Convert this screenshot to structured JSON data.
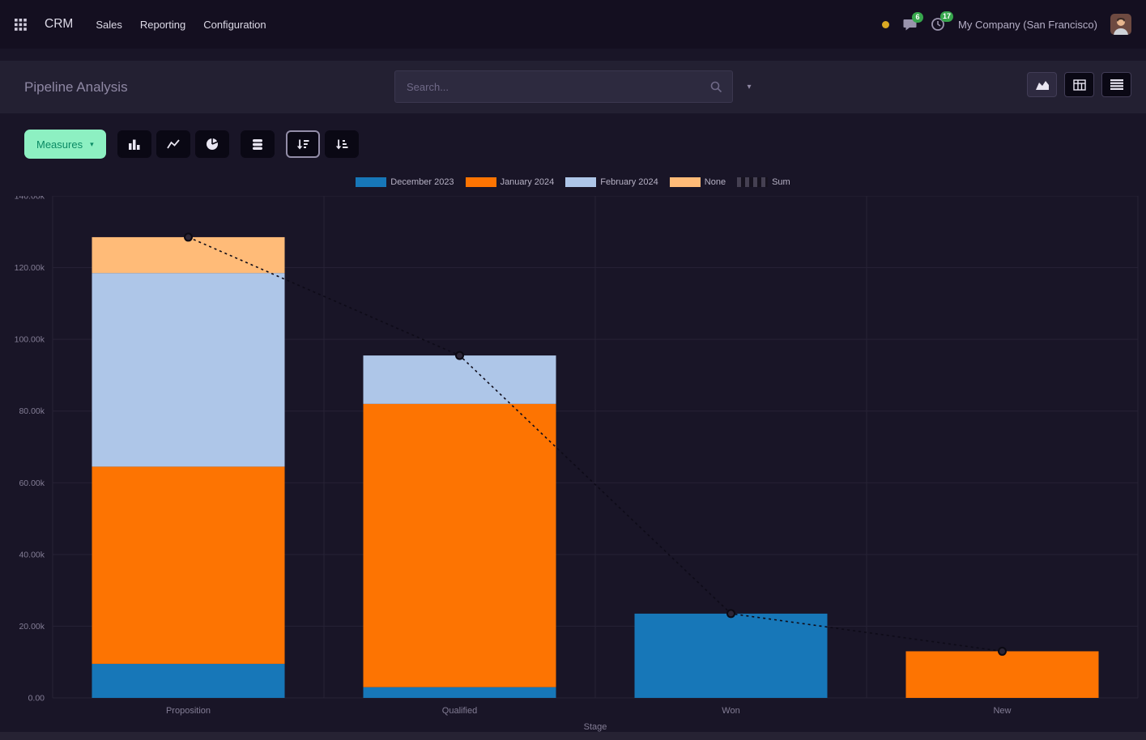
{
  "navbar": {
    "app_name": "CRM",
    "menu": [
      {
        "label": "Sales"
      },
      {
        "label": "Reporting"
      },
      {
        "label": "Configuration"
      }
    ],
    "messages_badge": "6",
    "activities_badge": "17",
    "company": "My Company (San Francisco)"
  },
  "control_panel": {
    "title": "Pipeline Analysis",
    "search_placeholder": "Search..."
  },
  "toolbar": {
    "measures_label": "Measures"
  },
  "icons": {
    "apps_menu": "grid-3x3",
    "messages": "speech-bubble",
    "activities": "clock",
    "search": "magnifier",
    "dropdown_caret": "caret-down",
    "view_graph": "area-chart",
    "view_pivot": "pivot-table",
    "view_list": "list-rows",
    "chart_bar": "bar-chart",
    "chart_line": "line-chart",
    "chart_pie": "pie-chart",
    "stacked": "stacked-layers",
    "sort_desc": "sort-amount-desc",
    "sort_asc": "sort-amount-asc"
  },
  "theme": {
    "accent_teal": "#0b8a64",
    "measures_bg": "#8df0c2",
    "badge_green": "#37a74d",
    "navbar_bg": "#140f20",
    "panel_bg": "#232032",
    "body_bg": "#191527"
  },
  "chart_data": {
    "type": "bar",
    "stacked": true,
    "title": "Pipeline Analysis",
    "categories": [
      "Proposition",
      "Qualified",
      "Won",
      "New"
    ],
    "series": [
      {
        "name": "December 2023",
        "color": "#1777b8",
        "values": [
          9500,
          3000,
          23500,
          0
        ]
      },
      {
        "name": "January 2024",
        "color": "#fd7402",
        "values": [
          55000,
          79000,
          0,
          13000
        ]
      },
      {
        "name": "February 2024",
        "color": "#aec6e8",
        "values": [
          54000,
          13500,
          0,
          0
        ]
      },
      {
        "name": "None",
        "color": "#ffbb78",
        "values": [
          10000,
          0,
          0,
          0
        ]
      }
    ],
    "sum_series": {
      "name": "Sum",
      "color": "#0e0b18",
      "values": [
        128500,
        95500,
        23500,
        13000
      ]
    },
    "xlabel": "Stage",
    "ylabel": "",
    "ylim": [
      0,
      140000
    ],
    "yticks": [
      "0.00",
      "20.00k",
      "40.00k",
      "60.00k",
      "80.00k",
      "100.00k",
      "120.00k",
      "140.00k"
    ],
    "grid": true,
    "legend_position": "top"
  }
}
